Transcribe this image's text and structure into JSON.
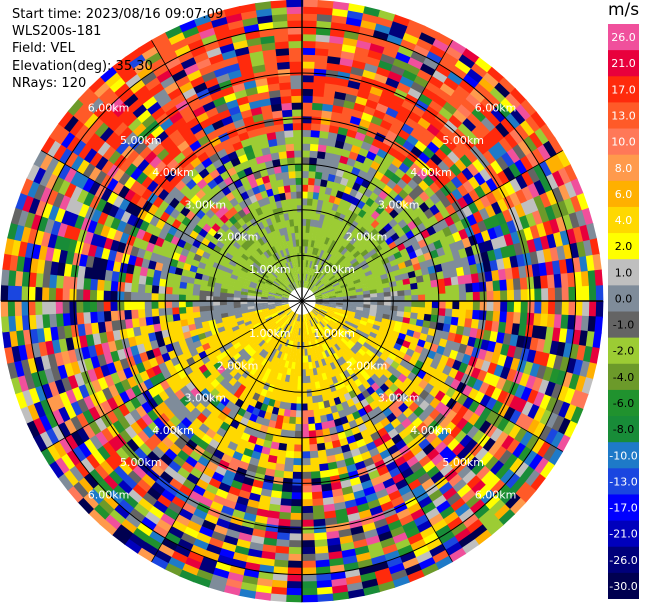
{
  "header": {
    "start_time": "Start time: 2023/08/16 09:07:09",
    "instrument": "WLS200s-181",
    "field": "Field: VEL",
    "elevation": "Elevation(deg): 35.30",
    "nrays": "NRays: 120"
  },
  "colorbar": {
    "unit": "m/s",
    "levels": [
      {
        "label": "26.0",
        "color": "#f0509c"
      },
      {
        "label": "21.0",
        "color": "#e8003c"
      },
      {
        "label": "17.0",
        "color": "#ff2a0c"
      },
      {
        "label": "13.0",
        "color": "#ff5a28"
      },
      {
        "label": "10.0",
        "color": "#ff7858"
      },
      {
        "label": "8.0",
        "color": "#ff9a4c"
      },
      {
        "label": "6.0",
        "color": "#ffb000"
      },
      {
        "label": "4.0",
        "color": "#ffd800"
      },
      {
        "label": "2.0",
        "color": "#ffff00"
      },
      {
        "label": "1.0",
        "color": "#bfbfbf"
      },
      {
        "label": "0.0",
        "color": "#7f8c9a"
      },
      {
        "label": "-1.0",
        "color": "#646464"
      },
      {
        "label": "-2.0",
        "color": "#9ccc34"
      },
      {
        "label": "-4.0",
        "color": "#6c9a2a"
      },
      {
        "label": "-6.0",
        "color": "#20922e"
      },
      {
        "label": "-8.0",
        "color": "#188c38"
      },
      {
        "label": "-10.0",
        "color": "#1e7ac8"
      },
      {
        "label": "-13.0",
        "color": "#1a46e0"
      },
      {
        "label": "-17.0",
        "color": "#0000ff"
      },
      {
        "label": "-21.0",
        "color": "#0000bc"
      },
      {
        "label": "-26.0",
        "color": "#00007a"
      },
      {
        "label": "-30.0",
        "color": "#000050"
      }
    ]
  },
  "chart_data": {
    "type": "ppi",
    "field": "VEL",
    "units": "m/s",
    "nrays": 120,
    "elevation_deg": 35.3,
    "range_rings_km": [
      1.0,
      2.0,
      3.0,
      4.0,
      5.0,
      6.0
    ],
    "ring_labels": [
      "1.00km",
      "2.00km",
      "3.00km",
      "4.00km",
      "5.00km",
      "6.00km"
    ],
    "azimuth_spokes_deg": [
      0,
      30,
      60,
      90,
      120,
      150,
      180,
      210,
      240,
      270,
      300,
      330
    ],
    "grid": true
  }
}
